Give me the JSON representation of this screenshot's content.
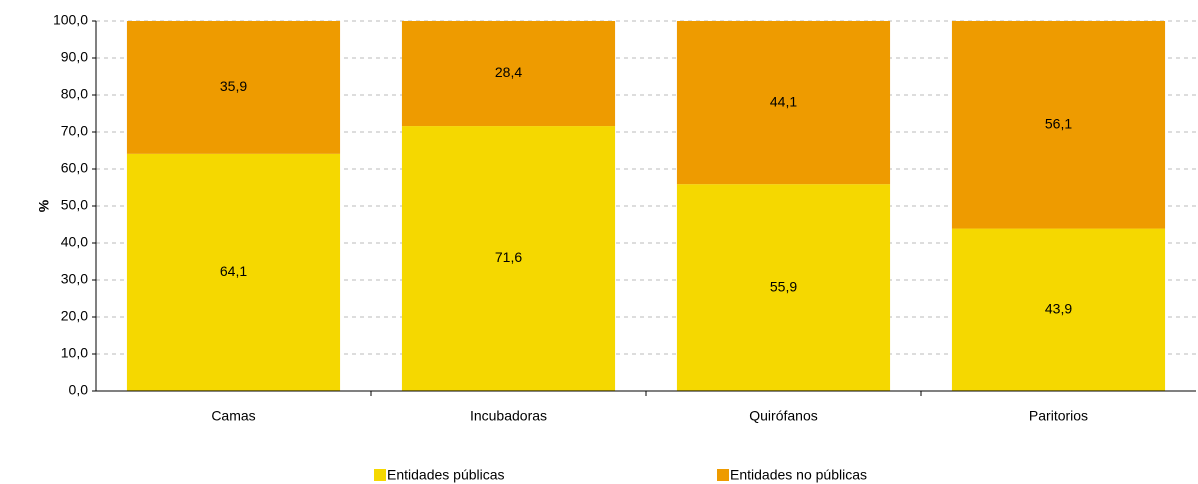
{
  "chart_data": {
    "type": "stacked-bar",
    "y_label": "%",
    "categories": [
      "Camas",
      "Incubadoras",
      "Quirófanos",
      "Paritorios"
    ],
    "series": [
      {
        "name": "Entidades públicas",
        "color": "#f5d800",
        "values": [
          64.1,
          71.6,
          55.9,
          43.9
        ],
        "value_labels": [
          "64,1",
          "71,6",
          "55,9",
          "43,9"
        ]
      },
      {
        "name": "Entidades no públicas",
        "color": "#ee9b00",
        "values": [
          35.9,
          28.4,
          44.1,
          56.1
        ],
        "value_labels": [
          "35,9",
          "28,4",
          "44,1",
          "56,1"
        ]
      }
    ],
    "ylim": [
      0,
      100
    ],
    "yticks": [
      {
        "value": 0,
        "label": "0,0"
      },
      {
        "value": 10,
        "label": "10,0"
      },
      {
        "value": 20,
        "label": "20,0"
      },
      {
        "value": 30,
        "label": "30,0"
      },
      {
        "value": 40,
        "label": "40,0"
      },
      {
        "value": 50,
        "label": "50,0"
      },
      {
        "value": 60,
        "label": "60,0"
      },
      {
        "value": 70,
        "label": "70,0"
      },
      {
        "value": 80,
        "label": "80,0"
      },
      {
        "value": 90,
        "label": "90,0"
      },
      {
        "value": 100,
        "label": "100,0"
      }
    ],
    "grid": true,
    "legend": "bottom"
  }
}
